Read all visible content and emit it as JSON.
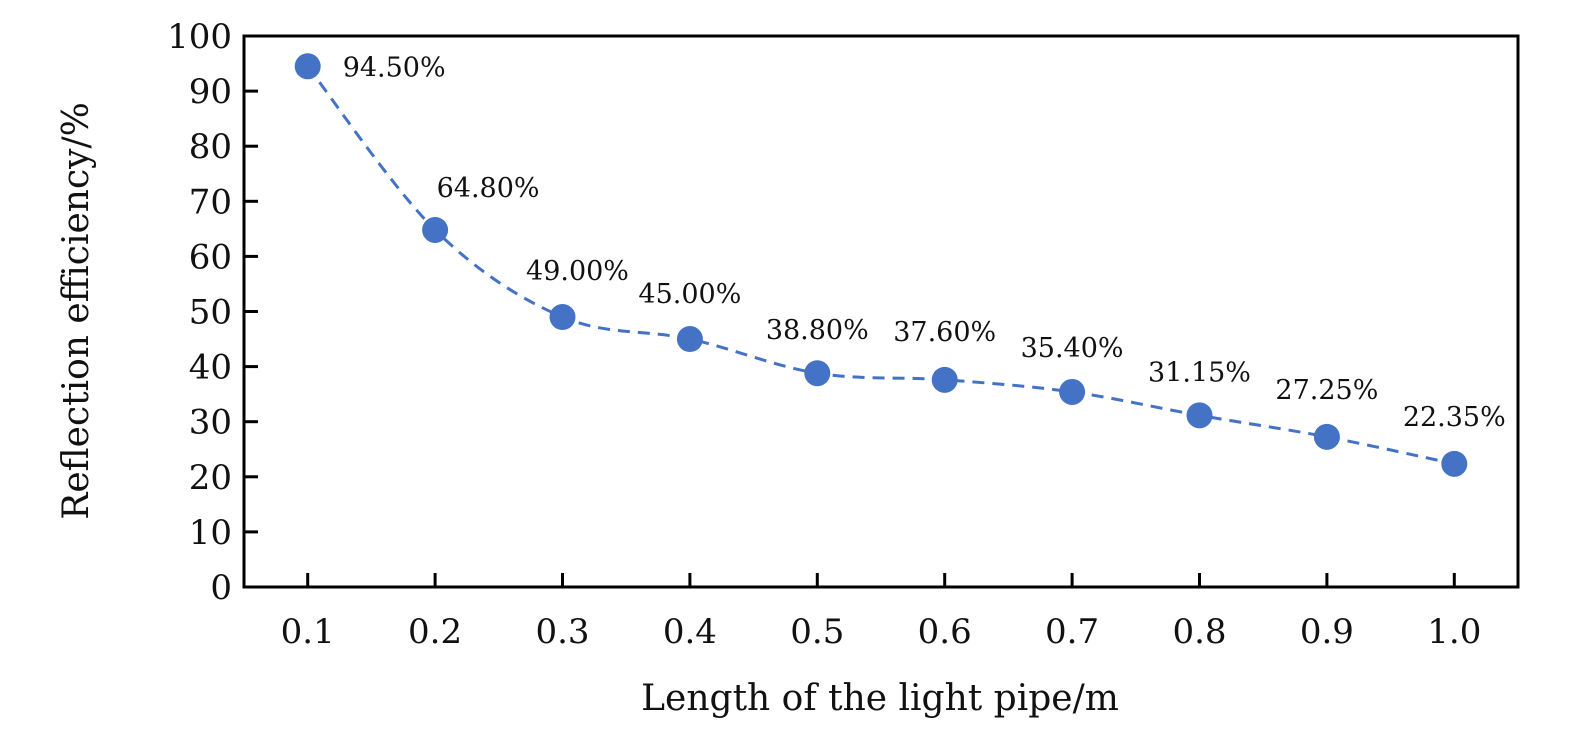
{
  "chart_data": {
    "type": "scatter",
    "title": "",
    "xlabel": "Length of the light pipe/m",
    "ylabel": "Reflection efficiency/%",
    "x": [
      0.1,
      0.2,
      0.3,
      0.4,
      0.5,
      0.6,
      0.7,
      0.8,
      0.9,
      1.0
    ],
    "x_tick_labels": [
      "0.1",
      "0.2",
      "0.3",
      "0.4",
      "0.5",
      "0.6",
      "0.7",
      "0.8",
      "0.9",
      "1.0"
    ],
    "values": [
      94.5,
      64.8,
      49.0,
      45.0,
      38.8,
      37.6,
      35.4,
      31.15,
      27.25,
      22.35
    ],
    "data_labels": [
      "94.50%",
      "64.80%",
      "49.00%",
      "45.00%",
      "38.80%",
      "37.60%",
      "35.40%",
      "31.15%",
      "27.25%",
      "22.35%"
    ],
    "ylim": [
      0,
      100
    ],
    "xlim": [
      0.05,
      1.05
    ],
    "y_ticks": [
      0,
      10,
      20,
      30,
      40,
      50,
      60,
      70,
      80,
      90,
      100
    ],
    "y_tick_labels": [
      "0",
      "10",
      "20",
      "30",
      "40",
      "50",
      "60",
      "70",
      "80",
      "90",
      "100"
    ],
    "trendline": "dashed smooth curve",
    "grid": false,
    "legend": "none",
    "marker_color": "#4472C4",
    "line_color": "#4472C4"
  }
}
